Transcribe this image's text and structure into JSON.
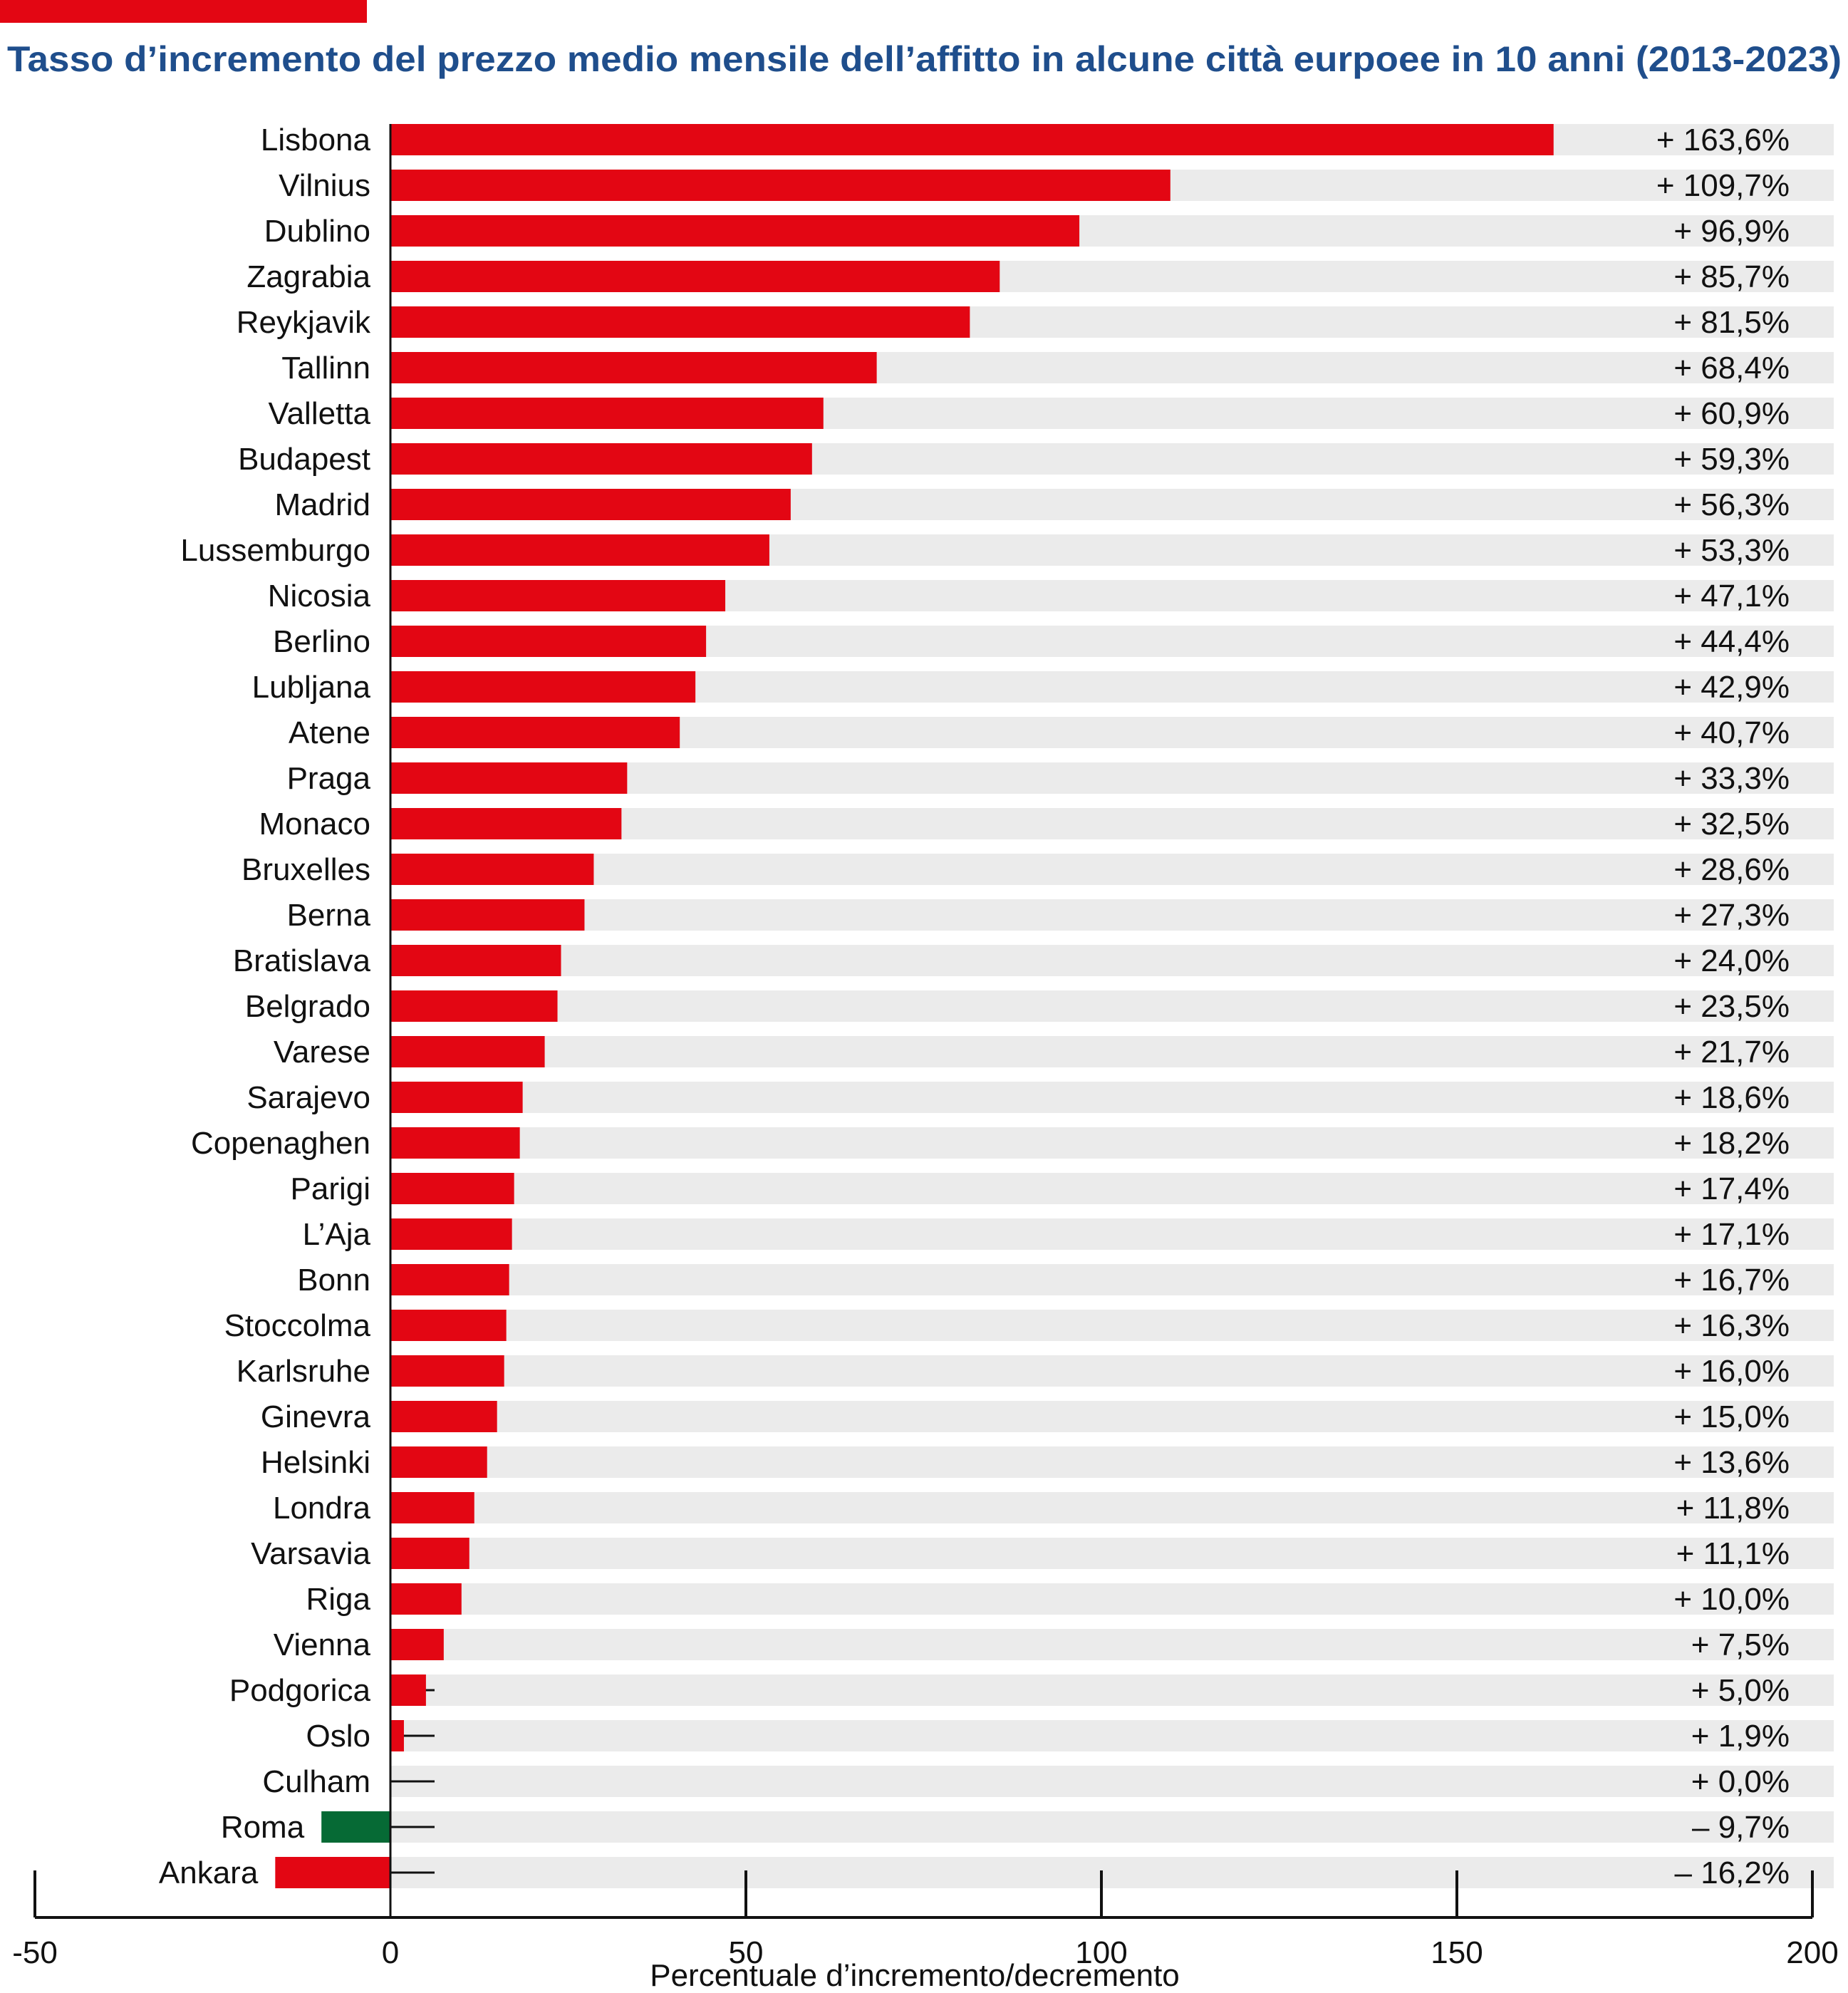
{
  "colors": {
    "positive": "#e30613",
    "negative": "#e30613",
    "highlight": "#066a35",
    "track": "#ebebeb",
    "title": "#1f4e8c",
    "accent_bar": "#e30613"
  },
  "chart_data": {
    "type": "bar",
    "orientation": "horizontal",
    "title": "Tasso d’incremento del prezzo medio mensile dell’affitto in alcune città eurpoee in 10 anni (2013-2023)",
    "xlabel": "Percentuale d’incremento/decremento",
    "ylabel": "",
    "xlim": [
      -50,
      200
    ],
    "xticks": [
      -50,
      0,
      50,
      100,
      150,
      200
    ],
    "grid": false,
    "highlight_category": "Roma",
    "categories": [
      "Lisbona",
      "Vilnius",
      "Dublino",
      "Zagrabia",
      "Reykjavik",
      "Tallinn",
      "Valletta",
      "Budapest",
      "Madrid",
      "Lussemburgo",
      "Nicosia",
      "Berlino",
      "Lubljana",
      "Atene",
      "Praga",
      "Monaco",
      "Bruxelles",
      "Berna",
      "Bratislava",
      "Belgrado",
      "Varese",
      "Sarajevo",
      "Copenaghen",
      "Parigi",
      "L’Aja",
      "Bonn",
      "Stoccolma",
      "Karlsruhe",
      "Ginevra",
      "Helsinki",
      "Londra",
      "Varsavia",
      "Riga",
      "Vienna",
      "Podgorica",
      "Oslo",
      "Culham",
      "Roma",
      "Ankara"
    ],
    "values": [
      163.6,
      109.7,
      96.9,
      85.7,
      81.5,
      68.4,
      60.9,
      59.3,
      56.3,
      53.3,
      47.1,
      44.4,
      42.9,
      40.7,
      33.3,
      32.5,
      28.6,
      27.3,
      24.0,
      23.5,
      21.7,
      18.6,
      18.2,
      17.4,
      17.1,
      16.7,
      16.3,
      16.0,
      15.0,
      13.6,
      11.8,
      11.1,
      10.0,
      7.5,
      5.0,
      1.9,
      0.0,
      -9.7,
      -16.2
    ],
    "value_labels": [
      "+ 163,6%",
      "+ 109,7%",
      "+ 96,9%",
      "+ 85,7%",
      "+ 81,5%",
      "+ 68,4%",
      "+ 60,9%",
      "+ 59,3%",
      "+ 56,3%",
      "+ 53,3%",
      "+ 47,1%",
      "+ 44,4%",
      "+ 42,9%",
      "+ 40,7%",
      "+ 33,3%",
      "+ 32,5%",
      "+ 28,6%",
      "+ 27,3%",
      "+ 24,0%",
      "+ 23,5%",
      "+ 21,7%",
      "+ 18,6%",
      "+ 18,2%",
      "+ 17,4%",
      "+ 17,1%",
      "+ 16,7%",
      "+ 16,3%",
      "+ 16,0%",
      "+ 15,0%",
      "+ 13,6%",
      "+ 11,8%",
      "+ 11,1%",
      "+ 10,0%",
      "+ 7,5%",
      "+ 5,0%",
      "+ 1,9%",
      "+ 0,0%",
      "– 9,7%",
      "– 16,2%"
    ]
  }
}
